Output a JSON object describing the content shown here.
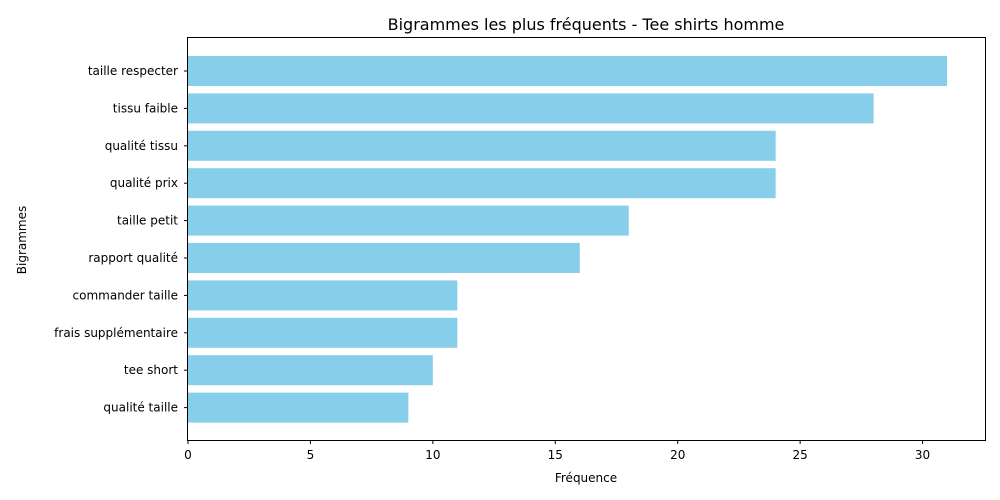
{
  "chart_data": {
    "type": "bar",
    "orientation": "horizontal",
    "title": "Bigrammes les plus fréquents - Tee shirts homme",
    "xlabel": "Fréquence",
    "ylabel": "Bigrammes",
    "categories": [
      "taille respecter",
      "tissu faible",
      "qualité tissu",
      "qualité prix",
      "taille petit",
      "rapport qualité",
      "commander taille",
      "frais supplémentaire",
      "tee short",
      "qualité taille"
    ],
    "values": [
      31,
      28,
      24,
      24,
      18,
      16,
      11,
      11,
      10,
      9
    ],
    "xlim": [
      0,
      32.55
    ],
    "xticks": [
      "0",
      "5",
      "10",
      "15",
      "20",
      "25",
      "30"
    ],
    "bar_color": "#87ceeb",
    "grid": false
  }
}
